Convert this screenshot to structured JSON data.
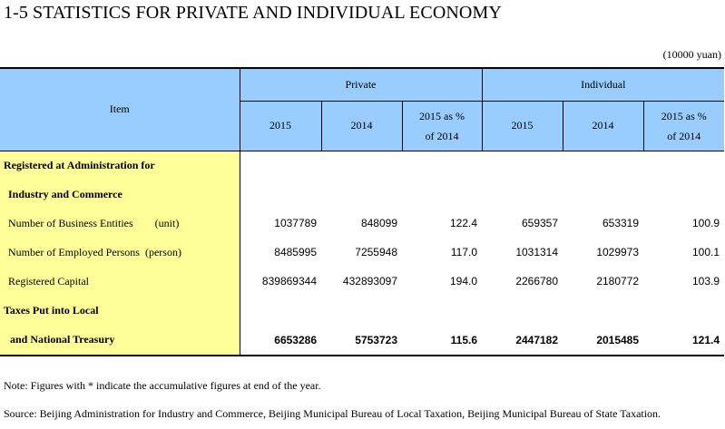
{
  "title": "1-5  STATISTICS FOR PRIVATE AND INDIVIDUAL ECONOMY",
  "unit": "(10000 yuan)",
  "header": {
    "item": "Item",
    "private": "Private",
    "individual": "Individual",
    "col_2015": "2015",
    "col_2014": "2014",
    "col_pct_line1": "2015 as %",
    "col_pct_line2": "of 2014"
  },
  "rows": [
    {
      "label": "Registered at Administration for",
      "values": [
        "",
        "",
        "",
        "",
        "",
        ""
      ]
    },
    {
      "label": "Industry and Commerce",
      "values": [
        "",
        "",
        "",
        "",
        "",
        ""
      ]
    },
    {
      "label": "Number of Business Entities        (unit)",
      "values": [
        "1037789",
        "848099",
        "122.4",
        "659357",
        "653319",
        "100.9"
      ]
    },
    {
      "label": "Number of Employed Persons  (person)",
      "values": [
        "8485995",
        "7255948",
        "117.0",
        "1031314",
        "1029973",
        "100.1"
      ]
    },
    {
      "label": "Registered Capital",
      "values": [
        "839869344",
        "432893097",
        "194.0",
        "2266780",
        "2180772",
        "103.9"
      ]
    },
    {
      "label": "Taxes Put into Local",
      "values": [
        "",
        "",
        "",
        "",
        "",
        ""
      ]
    },
    {
      "label": "and National Treasury",
      "values": [
        "6653286",
        "5753723",
        "115.6",
        "2447182",
        "2015485",
        "121.4"
      ]
    }
  ],
  "notes": {
    "note": "Note: Figures with * indicate the accumulative figures at end of the year.",
    "source": "Source: Beijing Administration for Industry and Commerce, Beijing Municipal Bureau of Local Taxation, Beijing Municipal Bureau of State Taxation."
  }
}
